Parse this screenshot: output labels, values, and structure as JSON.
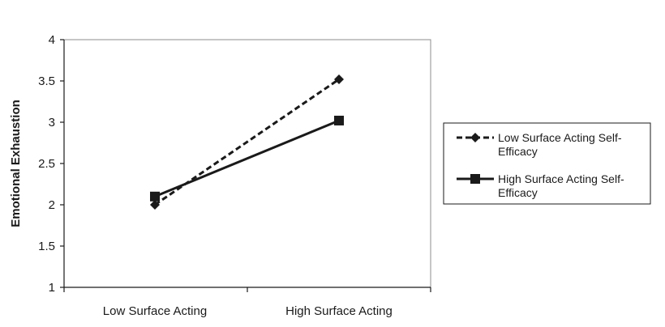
{
  "chart_data": {
    "type": "line",
    "title": "",
    "xlabel": "",
    "ylabel": "Emotional Exhaustion",
    "categories": [
      "Low Surface Acting",
      "High Surface Acting"
    ],
    "ylim": [
      1,
      4
    ],
    "yticks": [
      "1",
      "1.5",
      "2",
      "2.5",
      "3",
      "3.5",
      "4"
    ],
    "grid": false,
    "legend_position": "right",
    "series": [
      {
        "name": "Low Surface Acting Self-Efficacy",
        "name_lines": [
          "Low Surface Acting Self-",
          "Efficacy"
        ],
        "values": [
          2.0,
          3.52
        ],
        "line_style": "dashed",
        "marker": "diamond",
        "color": "#1a1a1a"
      },
      {
        "name": "High Surface Acting Self-Efficacy",
        "name_lines": [
          "High Surface Acting Self-",
          "Efficacy"
        ],
        "values": [
          2.1,
          3.02
        ],
        "line_style": "solid",
        "marker": "square",
        "color": "#1a1a1a"
      }
    ]
  }
}
